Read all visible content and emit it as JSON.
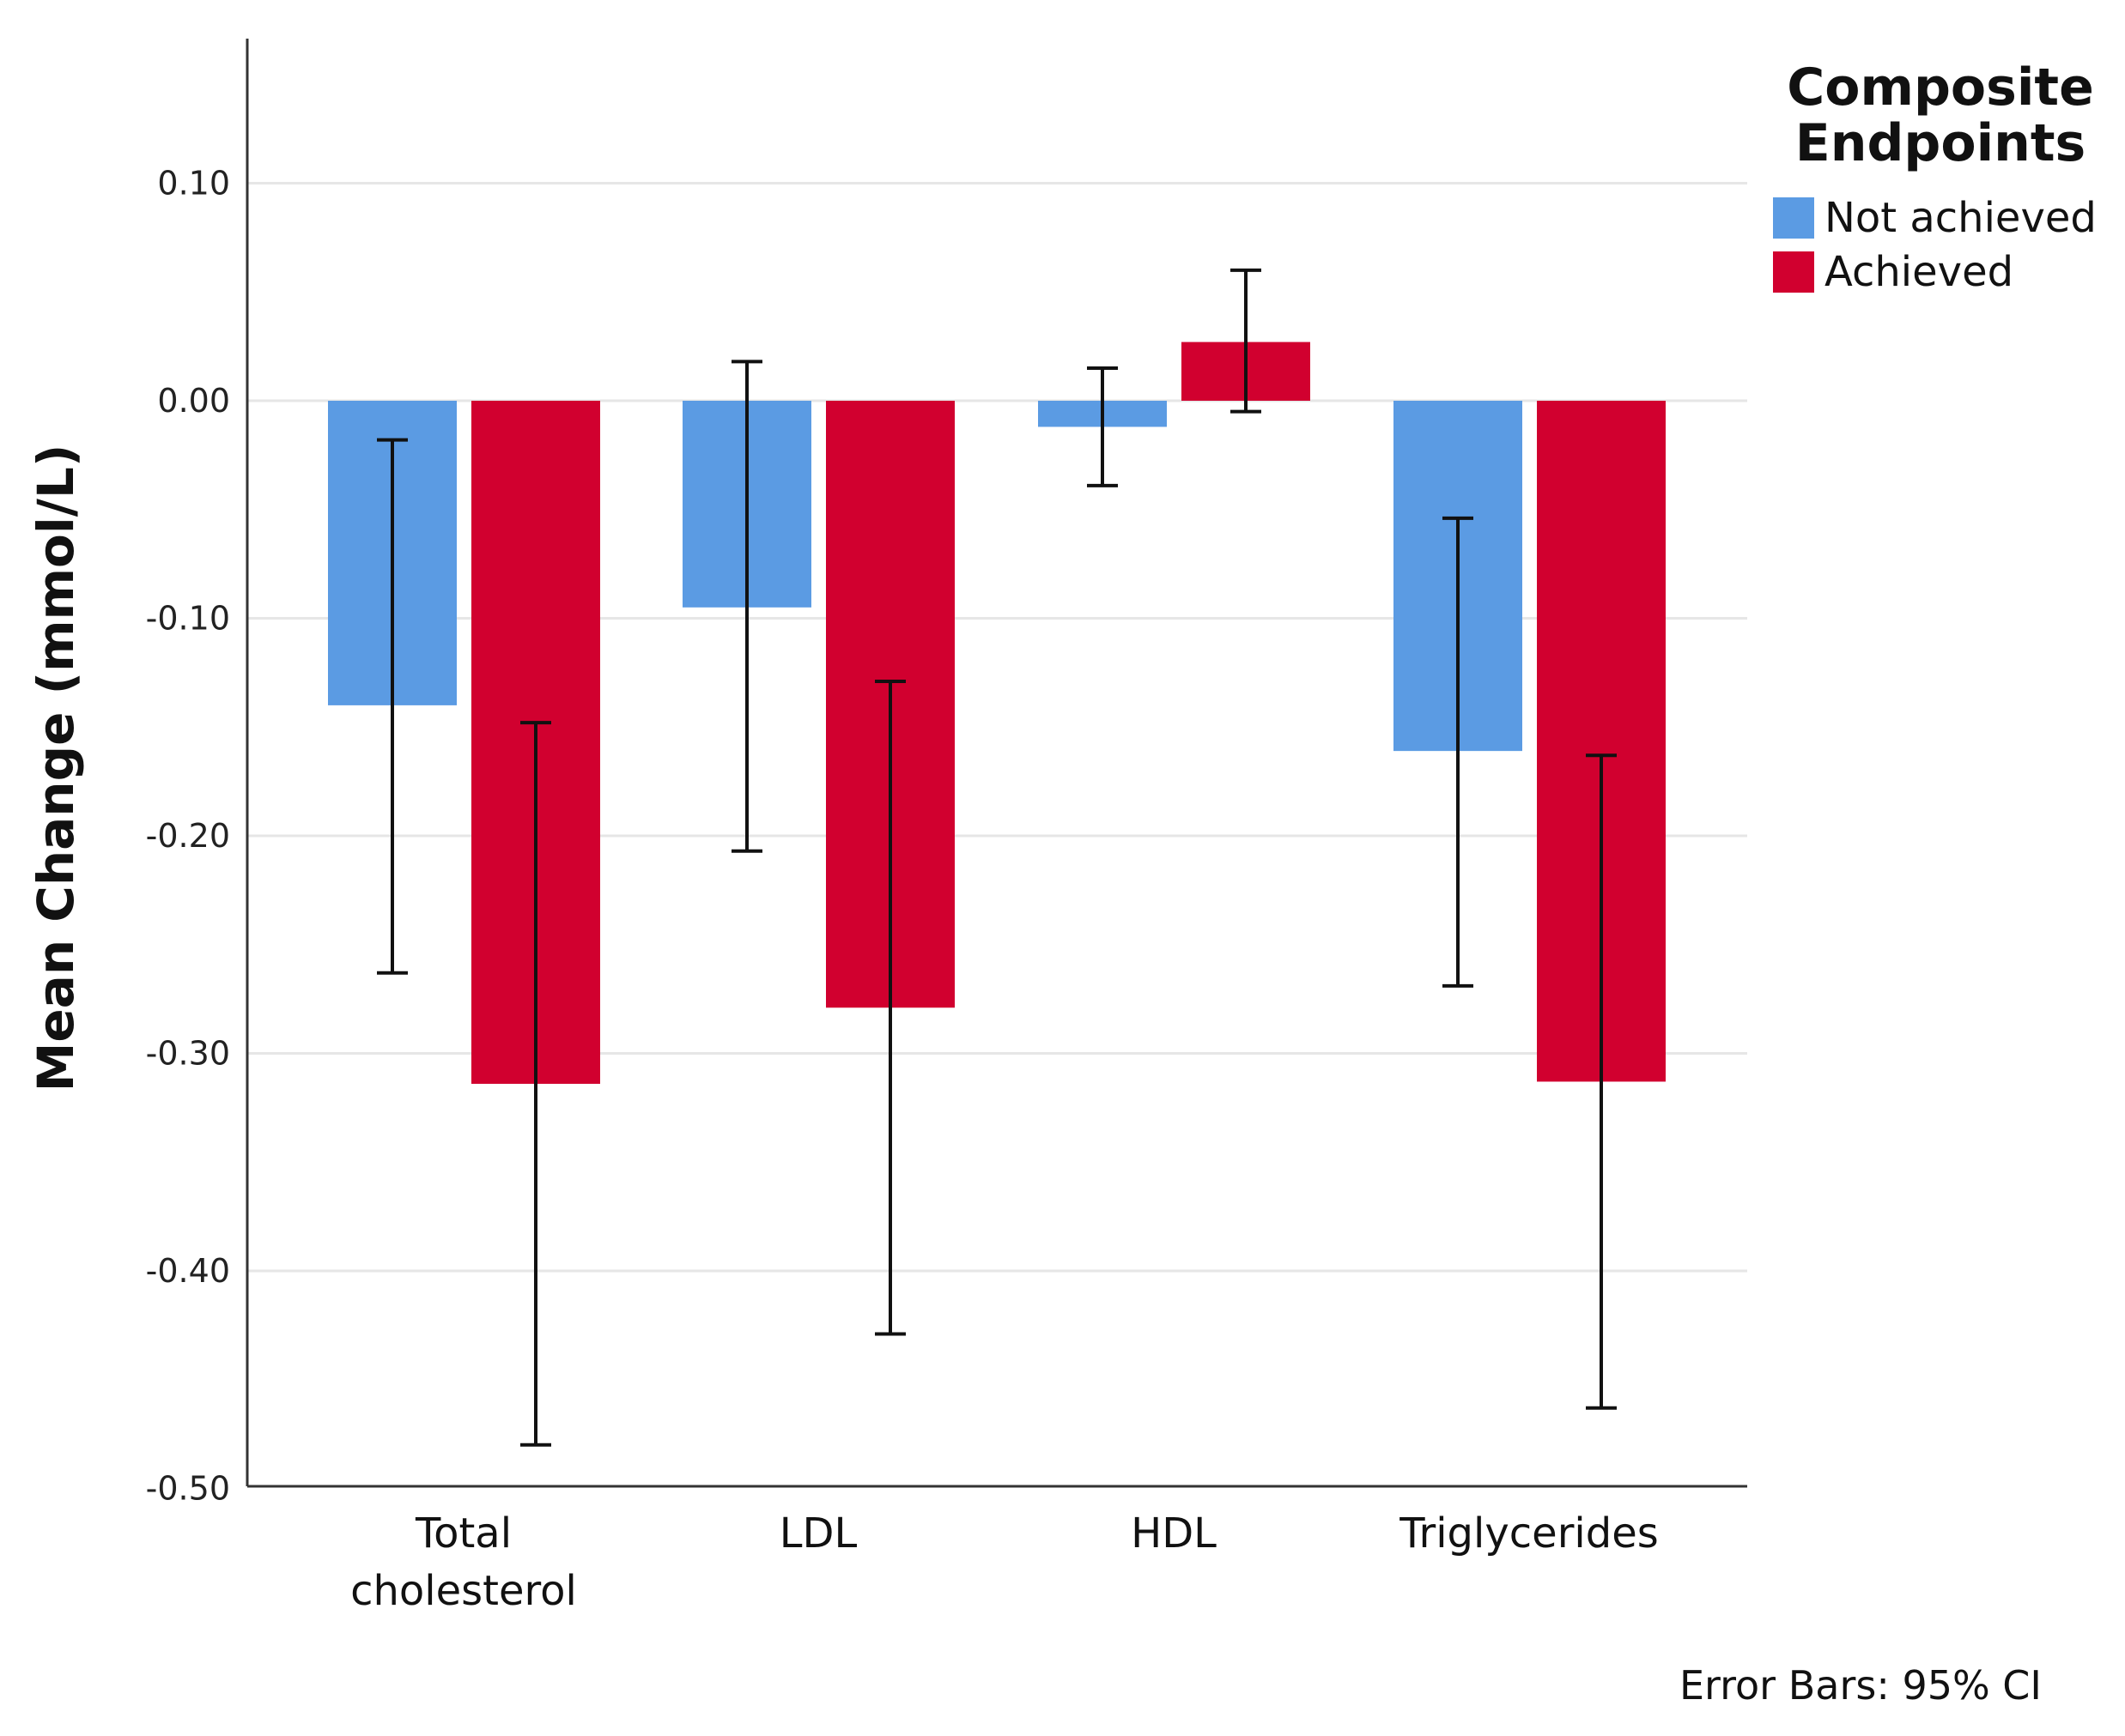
{
  "chart_data": {
    "type": "bar",
    "title": "",
    "xlabel": "",
    "ylabel": "Mean Change (mmol/L)",
    "ylim": [
      -0.5,
      0.17
    ],
    "yticks": [
      0.1,
      0.0,
      -0.1,
      -0.2,
      -0.3,
      -0.4,
      -0.5
    ],
    "ytick_labels": [
      "0.10",
      "0.00",
      "-0.10",
      "-0.20",
      "-0.30",
      "-0.40",
      "-0.50"
    ],
    "grid": true,
    "categories": [
      [
        "Total",
        "cholesterol"
      ],
      [
        "LDL"
      ],
      [
        "HDL"
      ],
      [
        "Triglycerides"
      ]
    ],
    "series": [
      {
        "name": "Not achieved",
        "color": "#5B9BE3",
        "values": [
          -0.14,
          -0.095,
          -0.012,
          -0.161
        ],
        "ci_lower": [
          -0.263,
          -0.207,
          -0.039,
          -0.269
        ],
        "ci_upper": [
          -0.018,
          0.018,
          0.015,
          -0.054
        ]
      },
      {
        "name": "Achieved",
        "color": "#D1002F",
        "values": [
          -0.314,
          -0.279,
          0.027,
          -0.313
        ],
        "ci_lower": [
          -0.48,
          -0.429,
          -0.005,
          -0.463
        ],
        "ci_upper": [
          -0.148,
          -0.129,
          0.06,
          -0.163
        ]
      }
    ],
    "legend": {
      "title": [
        "Composite",
        "Endpoints"
      ],
      "position": "top-right"
    },
    "footnote": "Error Bars: 95% CI"
  }
}
